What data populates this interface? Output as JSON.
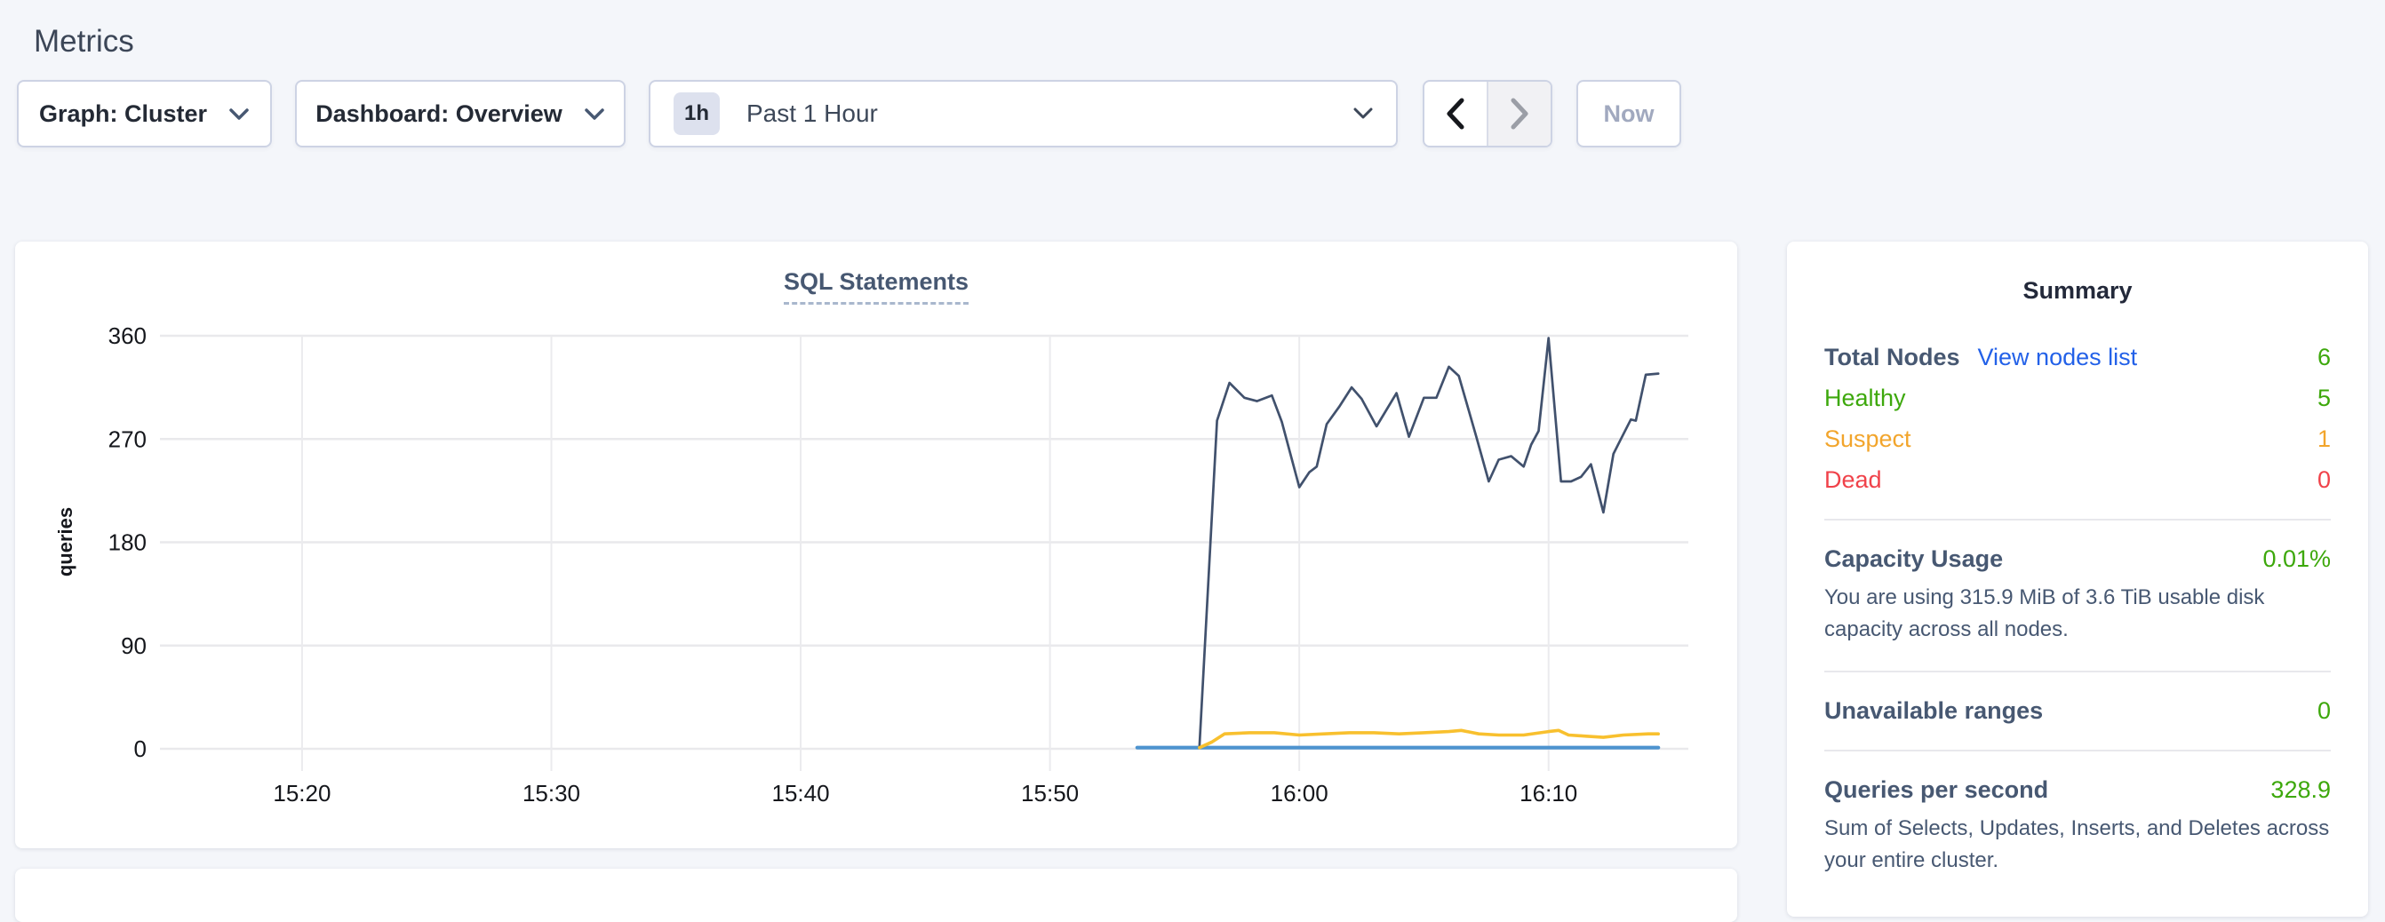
{
  "page": {
    "title": "Metrics"
  },
  "toolbar": {
    "graph_dropdown": {
      "label": "Graph: Cluster"
    },
    "dashboard_dropdown": {
      "label": "Dashboard: Overview"
    },
    "time_select": {
      "badge": "1h",
      "label": "Past 1 Hour"
    },
    "now_button": "Now"
  },
  "chart_data": {
    "type": "line",
    "title": "SQL Statements",
    "ylabel": "queries",
    "yticks": [
      0,
      90,
      180,
      270,
      360
    ],
    "ylim": [
      0,
      360
    ],
    "xticks": [
      {
        "t": 0,
        "label": "15:20"
      },
      {
        "t": 10,
        "label": "15:30"
      },
      {
        "t": 20,
        "label": "15:40"
      },
      {
        "t": 30,
        "label": "15:50"
      },
      {
        "t": 40,
        "label": "16:00"
      },
      {
        "t": 50,
        "label": "16:10"
      }
    ],
    "xlim_minutes": [
      -5.7,
      55.0
    ],
    "grid": true,
    "legend": "none",
    "series": [
      {
        "name": "blue-series",
        "color": "#4d93cf",
        "stroke_width": 4.2,
        "points": [
          [
            33.5,
            1
          ],
          [
            54.4,
            1
          ]
        ]
      },
      {
        "name": "navy-series",
        "color": "#41516d",
        "stroke_width": 2.7,
        "points": [
          [
            36.0,
            3
          ],
          [
            36.7,
            286
          ],
          [
            37.2,
            319
          ],
          [
            37.8,
            306
          ],
          [
            38.3,
            303
          ],
          [
            38.9,
            308
          ],
          [
            39.3,
            285
          ],
          [
            40.0,
            228
          ],
          [
            40.4,
            241
          ],
          [
            40.7,
            246
          ],
          [
            41.1,
            283
          ],
          [
            41.6,
            298
          ],
          [
            42.1,
            315
          ],
          [
            42.5,
            305
          ],
          [
            43.1,
            281
          ],
          [
            43.9,
            310
          ],
          [
            44.4,
            272
          ],
          [
            45.0,
            306
          ],
          [
            45.5,
            306
          ],
          [
            46.0,
            333
          ],
          [
            46.4,
            325
          ],
          [
            47.1,
            272
          ],
          [
            47.6,
            233
          ],
          [
            48.0,
            252
          ],
          [
            48.5,
            255
          ],
          [
            49.0,
            246
          ],
          [
            49.3,
            265
          ],
          [
            49.6,
            277
          ],
          [
            50.0,
            358
          ],
          [
            50.5,
            233
          ],
          [
            50.9,
            233
          ],
          [
            51.3,
            237
          ],
          [
            51.7,
            248
          ],
          [
            52.2,
            206
          ],
          [
            52.6,
            257
          ],
          [
            52.9,
            270
          ],
          [
            53.3,
            287
          ],
          [
            53.5,
            286
          ],
          [
            53.9,
            326
          ],
          [
            54.4,
            327
          ]
        ]
      },
      {
        "name": "yellow-series",
        "color": "#f8c02e",
        "stroke_width": 3.6,
        "points": [
          [
            36.0,
            1
          ],
          [
            36.5,
            6
          ],
          [
            37.0,
            13
          ],
          [
            38.0,
            14
          ],
          [
            39.0,
            14
          ],
          [
            40.0,
            12
          ],
          [
            41.0,
            13
          ],
          [
            42.0,
            14
          ],
          [
            43.0,
            14
          ],
          [
            44.0,
            13
          ],
          [
            45.0,
            14
          ],
          [
            46.0,
            15
          ],
          [
            46.5,
            16
          ],
          [
            47.2,
            13
          ],
          [
            48.0,
            12
          ],
          [
            49.0,
            12
          ],
          [
            50.0,
            15
          ],
          [
            50.4,
            16
          ],
          [
            50.8,
            12
          ],
          [
            51.5,
            11
          ],
          [
            52.2,
            10
          ],
          [
            53.0,
            12
          ],
          [
            54.0,
            13
          ],
          [
            54.4,
            13
          ]
        ]
      }
    ]
  },
  "summary": {
    "heading": "Summary",
    "nodes": {
      "label": "Total Nodes",
      "link": "View nodes list",
      "value": "6",
      "rows": [
        {
          "label": "Healthy",
          "value": "5"
        },
        {
          "label": "Suspect",
          "value": "1"
        },
        {
          "label": "Dead",
          "value": "0"
        }
      ]
    },
    "capacity": {
      "label": "Capacity Usage",
      "value": "0.01%",
      "description": "You are using 315.9 MiB of 3.6 TiB usable disk capacity across all nodes."
    },
    "unavailable": {
      "label": "Unavailable ranges",
      "value": "0"
    },
    "qps": {
      "label": "Queries per second",
      "value": "328.9",
      "description": "Sum of Selects, Updates, Inserts, and Deletes across your entire cluster."
    }
  },
  "colors": {
    "link_blue": "#2361e8",
    "healthy_green": "#3da80c",
    "suspect_orange": "#f2a52c",
    "dead_red": "#f0424a",
    "series_navy": "#41516d",
    "series_yellow": "#f8c02e",
    "series_blue": "#4d93cf",
    "page_background": "#f4f6fa"
  }
}
